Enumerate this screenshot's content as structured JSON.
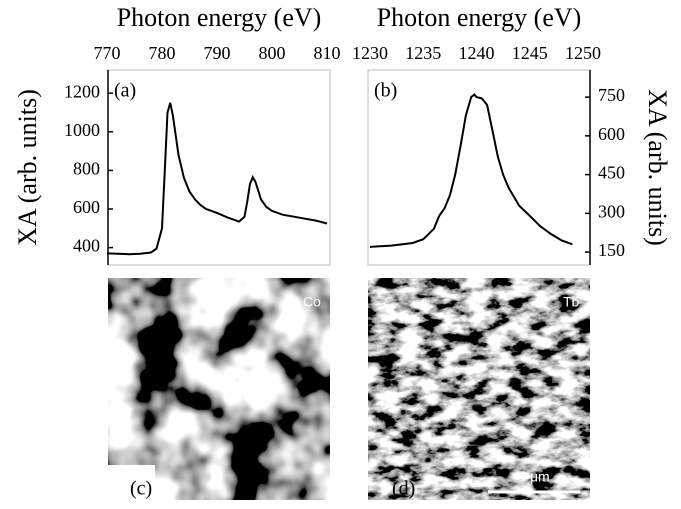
{
  "chart_data": [
    {
      "type": "line",
      "panel_label": "(a)",
      "x_label": "Photon energy (eV)",
      "y_label": "XA (arb. units)",
      "y_axis_position": "left",
      "x": [
        770,
        772,
        774,
        776,
        778,
        779,
        780,
        780.5,
        781,
        781.5,
        782,
        783,
        784,
        785,
        786,
        787,
        788,
        790,
        792,
        793,
        794,
        795,
        795.5,
        796,
        796.5,
        797,
        798,
        799,
        800,
        802,
        804,
        806,
        808,
        810
      ],
      "series": [
        {
          "color": "#000000",
          "values": [
            370,
            368,
            366,
            368,
            375,
            395,
            500,
            800,
            1100,
            1150,
            1080,
            880,
            760,
            690,
            650,
            620,
            600,
            580,
            555,
            545,
            535,
            560,
            640,
            730,
            765,
            740,
            650,
            610,
            590,
            570,
            560,
            550,
            540,
            525
          ]
        }
      ],
      "xlim": [
        770,
        810
      ],
      "xticks": [
        770,
        780,
        790,
        800,
        810
      ],
      "ylim": [
        310,
        1320
      ],
      "yticks": [
        400,
        600,
        800,
        1000,
        1200
      ]
    },
    {
      "type": "line",
      "panel_label": "(b)",
      "x_label": "Photon energy (eV)",
      "y_label": "XA (arb. units)",
      "y_axis_position": "right",
      "x": [
        1230,
        1232,
        1234,
        1235,
        1236,
        1236.5,
        1237,
        1237.5,
        1238,
        1238.5,
        1239,
        1239.5,
        1239.8,
        1240,
        1240.5,
        1241,
        1241.5,
        1242,
        1242.5,
        1243,
        1244,
        1245,
        1246,
        1247,
        1248,
        1249
      ],
      "series": [
        {
          "color": "#000000",
          "values": [
            170,
            175,
            185,
            200,
            240,
            290,
            320,
            370,
            450,
            560,
            680,
            750,
            760,
            750,
            745,
            720,
            620,
            520,
            450,
            400,
            330,
            290,
            250,
            220,
            195,
            180
          ]
        }
      ],
      "xlim": [
        1230,
        1250
      ],
      "xticks": [
        1230,
        1235,
        1240,
        1245,
        1250
      ],
      "ylim": [
        100,
        855
      ],
      "yticks": [
        150,
        300,
        450,
        600,
        750
      ]
    }
  ],
  "images": [
    {
      "panel_label": "(c)",
      "element": "Co"
    },
    {
      "panel_label": "(d)",
      "element": "Tb",
      "scale_bar": "1 μm"
    }
  ]
}
